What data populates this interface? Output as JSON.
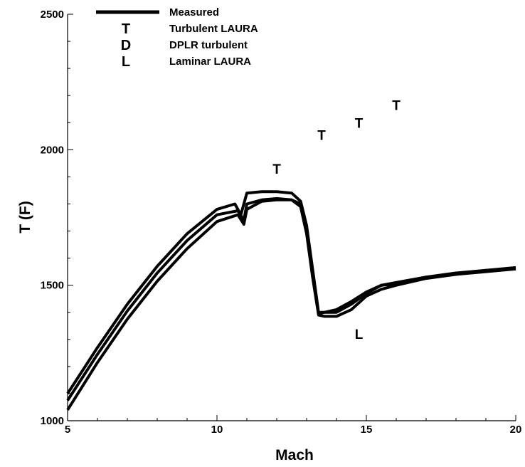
{
  "chart_data": {
    "type": "line",
    "title": "",
    "xlabel": "Mach",
    "ylabel": "T (F)",
    "xlim": [
      5,
      20
    ],
    "ylim": [
      1000,
      2500
    ],
    "x_ticks": [
      5,
      10,
      15,
      20
    ],
    "y_ticks": [
      1000,
      1500,
      2000,
      2500
    ],
    "x_tick_labels": [
      "5",
      "10",
      "15",
      "20"
    ],
    "y_tick_labels": [
      "1000",
      "1500",
      "2000",
      "2500"
    ],
    "grid": false,
    "legend_position": "top-left",
    "legend": [
      {
        "symbol": "",
        "label": "Measured",
        "kind": "line"
      },
      {
        "symbol": "T",
        "label": "Turbulent LAURA",
        "kind": "marker"
      },
      {
        "symbol": "D",
        "label": "DPLR turbulent",
        "kind": "marker"
      },
      {
        "symbol": "L",
        "label": "Laminar LAURA",
        "kind": "marker"
      }
    ],
    "series": [
      {
        "kind": "line",
        "color": "#000000",
        "x": [
          5,
          6,
          7,
          8,
          9,
          10,
          10.6,
          10.8,
          11.0,
          11.5,
          12.0,
          12.5,
          12.8,
          13.0,
          13.2,
          13.4,
          13.6,
          14.0,
          14.5,
          15.0,
          15.5,
          16.0,
          17.0,
          18.0,
          19.0,
          20.0
        ],
        "y": [
          1100,
          1270,
          1430,
          1570,
          1690,
          1780,
          1800,
          1760,
          1840,
          1845,
          1845,
          1840,
          1810,
          1720,
          1560,
          1400,
          1400,
          1400,
          1430,
          1470,
          1500,
          1510,
          1530,
          1540,
          1550,
          1560
        ]
      },
      {
        "kind": "line",
        "color": "#000000",
        "x": [
          5,
          6,
          7,
          8,
          9,
          10,
          10.7,
          10.9,
          11.0,
          11.5,
          12.0,
          12.5,
          12.8,
          13.0,
          13.2,
          13.4,
          13.6,
          14.0,
          14.5,
          15.0,
          15.5,
          16.0,
          17.0,
          18.0,
          19.0,
          20.0
        ],
        "y": [
          1075,
          1245,
          1405,
          1545,
          1665,
          1760,
          1775,
          1740,
          1800,
          1815,
          1820,
          1815,
          1800,
          1700,
          1540,
          1395,
          1400,
          1410,
          1440,
          1475,
          1500,
          1505,
          1530,
          1545,
          1555,
          1565
        ]
      },
      {
        "kind": "line",
        "color": "#000000",
        "x": [
          5,
          6,
          7,
          8,
          9,
          10,
          10.7,
          10.9,
          11.0,
          11.5,
          12.0,
          12.5,
          12.8,
          13.0,
          13.2,
          13.4,
          13.6,
          14.0,
          14.5,
          15.0,
          15.5,
          16.0,
          17.0,
          18.0,
          19.0,
          20.0
        ],
        "y": [
          1040,
          1215,
          1375,
          1515,
          1635,
          1735,
          1760,
          1725,
          1780,
          1810,
          1815,
          1815,
          1790,
          1690,
          1530,
          1390,
          1385,
          1385,
          1410,
          1460,
          1485,
          1500,
          1525,
          1540,
          1555,
          1560
        ]
      },
      {
        "kind": "marker",
        "symbol": "T",
        "x": [
          12.0,
          13.5,
          14.75,
          16.0
        ],
        "y": [
          1930,
          2055,
          2100,
          2165
        ]
      },
      {
        "kind": "marker",
        "symbol": "L",
        "x": [
          14.75
        ],
        "y": [
          1320
        ]
      }
    ]
  }
}
